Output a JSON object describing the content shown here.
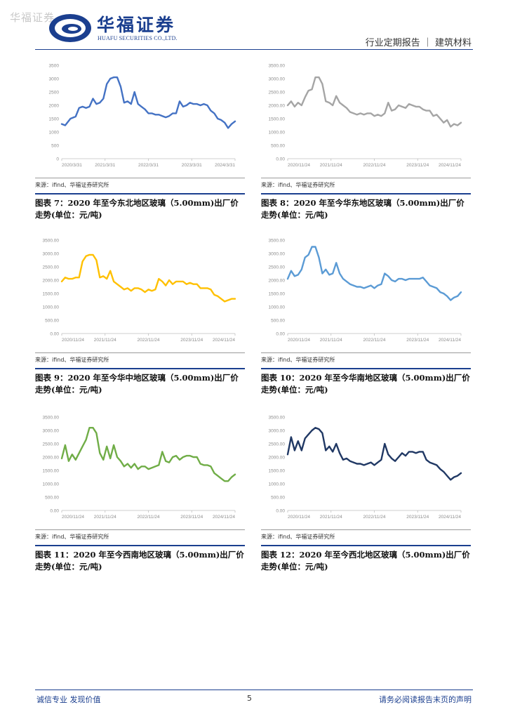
{
  "watermark": "华福证券",
  "header": {
    "logo_cn": "华福证券",
    "logo_en": "HUAFU SECURITIES CO.,LTD.",
    "report_type": "行业定期报告 ｜ 建筑材料"
  },
  "panels": [
    {
      "source": "来源：ifind、华福证券研究所",
      "caption": "图表 7：2020 年至今东北地区玻璃（5.00mm)出厂价走势(单位：元/吨)"
    },
    {
      "source": "来源：ifind、华福证券研究所",
      "caption": "图表 8：2020 年至今华东地区玻璃（5.00mm)出厂价走势(单位：元/吨)"
    },
    {
      "source": "来源：ifind、华福证券研究所",
      "caption": "图表 9：2020 年至今华中地区玻璃（5.00mm)出厂价走势(单位：元/吨)"
    },
    {
      "source": "来源：ifind、华福证券研究所",
      "caption": "图表 10：2020 年至今华南地区玻璃（5.00mm)出厂价走势(单位：元/吨)"
    },
    {
      "source": "来源：ifind、华福证券研究所",
      "caption": "图表 11：2020 年至今西南地区玻璃（5.00mm)出厂价走势(单位：元/吨)"
    },
    {
      "source": "来源：ifind、华福证券研究所",
      "caption": "图表 12：2020 年至今西北地区玻璃（5.00mm)出厂价走势(单位：元/吨)"
    }
  ],
  "footer": {
    "left": "诚信专业  发现价值",
    "page": "5",
    "right": "请务必阅读报告末页的声明"
  },
  "chart_data": [
    {
      "type": "line",
      "color": "#4472c4",
      "y_ticks": [
        "0",
        "500",
        "1000",
        "1500",
        "2000",
        "2500",
        "3000",
        "3500"
      ],
      "x_ticks": [
        "2020/3/31",
        "2021/3/31",
        "2022/3/31",
        "2023/3/31",
        "2024/3/31"
      ],
      "ylim": [
        0,
        3500
      ],
      "x": [
        0.0,
        0.02,
        0.05,
        0.08,
        0.1,
        0.12,
        0.14,
        0.16,
        0.18,
        0.2,
        0.22,
        0.24,
        0.26,
        0.28,
        0.3,
        0.32,
        0.34,
        0.36,
        0.38,
        0.4,
        0.42,
        0.44,
        0.46,
        0.48,
        0.5,
        0.52,
        0.54,
        0.56,
        0.58,
        0.6,
        0.62,
        0.64,
        0.66,
        0.68,
        0.7,
        0.72,
        0.74,
        0.76,
        0.78,
        0.8,
        0.82,
        0.84,
        0.86,
        0.88,
        0.9,
        0.92,
        0.94,
        0.96,
        0.98,
        1.0
      ],
      "values": [
        1300,
        1250,
        1500,
        1580,
        1900,
        1950,
        1900,
        1950,
        2250,
        2050,
        2100,
        2250,
        2800,
        3000,
        3050,
        3050,
        2700,
        2100,
        2150,
        2050,
        2500,
        2050,
        1950,
        1850,
        1700,
        1700,
        1650,
        1650,
        1600,
        1550,
        1600,
        1700,
        1700,
        2150,
        1950,
        2000,
        2100,
        2050,
        2050,
        2000,
        2050,
        2000,
        1800,
        1700,
        1500,
        1450,
        1350,
        1150,
        1300,
        1400
      ]
    },
    {
      "type": "line",
      "color": "#a5a5a5",
      "y_ticks": [
        "0.00",
        "500.00",
        "1000.00",
        "1500.00",
        "2000.00",
        "2500.00",
        "3000.00",
        "3500.00"
      ],
      "x_ticks": [
        "2020/11/24",
        "2021/11/24",
        "2022/11/24",
        "2023/11/24",
        "2024/11/24"
      ],
      "ylim": [
        0,
        3500
      ],
      "x": [
        0.0,
        0.02,
        0.04,
        0.06,
        0.08,
        0.1,
        0.12,
        0.14,
        0.16,
        0.18,
        0.2,
        0.22,
        0.24,
        0.26,
        0.28,
        0.3,
        0.32,
        0.34,
        0.36,
        0.38,
        0.4,
        0.42,
        0.44,
        0.46,
        0.48,
        0.5,
        0.52,
        0.54,
        0.56,
        0.58,
        0.6,
        0.62,
        0.64,
        0.66,
        0.68,
        0.7,
        0.72,
        0.74,
        0.76,
        0.78,
        0.8,
        0.82,
        0.84,
        0.86,
        0.88,
        0.9,
        0.92,
        0.94,
        0.96,
        0.98,
        1.0
      ],
      "values": [
        2000,
        2150,
        1950,
        2100,
        2000,
        2300,
        2550,
        2600,
        3050,
        3050,
        2800,
        2150,
        2100,
        2000,
        2350,
        2100,
        2000,
        1900,
        1750,
        1700,
        1650,
        1700,
        1650,
        1700,
        1700,
        1600,
        1650,
        1600,
        1700,
        2100,
        1800,
        1850,
        2000,
        1950,
        1900,
        2050,
        2000,
        1950,
        1950,
        1850,
        1800,
        1800,
        1600,
        1650,
        1500,
        1350,
        1450,
        1200,
        1300,
        1250,
        1350
      ]
    },
    {
      "type": "line",
      "color": "#ffc000",
      "y_ticks": [
        "0.00",
        "500.00",
        "1000.00",
        "1500.00",
        "2000.00",
        "2500.00",
        "3000.00",
        "3500.00"
      ],
      "x_ticks": [
        "2020/11/24",
        "2021/11/24",
        "2022/11/24",
        "2023/11/24",
        "2024/11/24"
      ],
      "ylim": [
        0,
        3500
      ],
      "x": [
        0.0,
        0.02,
        0.04,
        0.06,
        0.08,
        0.1,
        0.12,
        0.14,
        0.16,
        0.18,
        0.2,
        0.22,
        0.24,
        0.26,
        0.28,
        0.3,
        0.32,
        0.34,
        0.36,
        0.38,
        0.4,
        0.42,
        0.44,
        0.46,
        0.48,
        0.5,
        0.52,
        0.54,
        0.56,
        0.58,
        0.6,
        0.62,
        0.64,
        0.66,
        0.68,
        0.7,
        0.72,
        0.74,
        0.76,
        0.78,
        0.8,
        0.82,
        0.84,
        0.86,
        0.88,
        0.9,
        0.92,
        0.94,
        0.96,
        0.98,
        1.0
      ],
      "values": [
        1950,
        2100,
        2050,
        2050,
        2100,
        2100,
        2700,
        2900,
        2950,
        2950,
        2750,
        2100,
        2150,
        2050,
        2350,
        1950,
        1850,
        1750,
        1650,
        1700,
        1600,
        1700,
        1700,
        1650,
        1550,
        1650,
        1600,
        1650,
        2050,
        1950,
        1800,
        2000,
        1850,
        1950,
        1950,
        1950,
        1850,
        1900,
        1850,
        1850,
        1700,
        1700,
        1700,
        1650,
        1450,
        1400,
        1300,
        1200,
        1250,
        1300,
        1300
      ]
    },
    {
      "type": "line",
      "color": "#5b9bd5",
      "y_ticks": [
        "0.00",
        "500.00",
        "1000.00",
        "1500.00",
        "2000.00",
        "2500.00",
        "3000.00",
        "3500.00"
      ],
      "x_ticks": [
        "2020/11/24",
        "2021/11/24",
        "2022/11/24",
        "2023/11/24",
        "2024/11/24"
      ],
      "ylim": [
        0,
        3500
      ],
      "x": [
        0.0,
        0.02,
        0.04,
        0.06,
        0.08,
        0.1,
        0.12,
        0.14,
        0.16,
        0.18,
        0.2,
        0.22,
        0.24,
        0.26,
        0.28,
        0.3,
        0.32,
        0.34,
        0.36,
        0.38,
        0.4,
        0.42,
        0.44,
        0.46,
        0.48,
        0.5,
        0.52,
        0.54,
        0.56,
        0.58,
        0.6,
        0.62,
        0.64,
        0.66,
        0.68,
        0.7,
        0.72,
        0.74,
        0.76,
        0.78,
        0.8,
        0.82,
        0.84,
        0.86,
        0.88,
        0.9,
        0.92,
        0.94,
        0.96,
        0.98,
        1.0
      ],
      "values": [
        2050,
        2350,
        2150,
        2200,
        2400,
        2850,
        2950,
        3250,
        3250,
        2850,
        2250,
        2400,
        2200,
        2250,
        2650,
        2250,
        2050,
        1950,
        1850,
        1800,
        1750,
        1750,
        1700,
        1750,
        1800,
        1700,
        1800,
        1850,
        2250,
        2150,
        2000,
        1950,
        2050,
        2050,
        2000,
        2050,
        2050,
        2050,
        2050,
        2100,
        1950,
        1800,
        1750,
        1700,
        1550,
        1500,
        1400,
        1250,
        1350,
        1400,
        1550
      ]
    },
    {
      "type": "line",
      "color": "#70ad47",
      "y_ticks": [
        "0.00",
        "500.00",
        "1000.00",
        "1500.00",
        "2000.00",
        "2500.00",
        "3000.00",
        "3500.00"
      ],
      "x_ticks": [
        "2020/11/24",
        "2021/11/24",
        "2022/11/24",
        "2023/11/24",
        "2024/11/24"
      ],
      "ylim": [
        0,
        3500
      ],
      "x": [
        0.0,
        0.02,
        0.04,
        0.06,
        0.08,
        0.1,
        0.12,
        0.14,
        0.16,
        0.18,
        0.2,
        0.22,
        0.24,
        0.26,
        0.28,
        0.3,
        0.32,
        0.34,
        0.36,
        0.38,
        0.4,
        0.42,
        0.44,
        0.46,
        0.48,
        0.5,
        0.52,
        0.54,
        0.56,
        0.58,
        0.6,
        0.62,
        0.64,
        0.66,
        0.68,
        0.7,
        0.72,
        0.74,
        0.76,
        0.78,
        0.8,
        0.82,
        0.84,
        0.86,
        0.88,
        0.9,
        0.92,
        0.94,
        0.96,
        0.98,
        1.0
      ],
      "values": [
        1950,
        2450,
        1850,
        2100,
        1900,
        2150,
        2400,
        2650,
        3100,
        3100,
        2900,
        2150,
        1900,
        2400,
        1950,
        2450,
        2000,
        1850,
        1650,
        1750,
        1600,
        1750,
        1550,
        1650,
        1650,
        1550,
        1600,
        1650,
        1700,
        2200,
        1850,
        1800,
        2000,
        2050,
        1900,
        2000,
        2050,
        2050,
        2000,
        2000,
        1750,
        1700,
        1700,
        1650,
        1400,
        1300,
        1200,
        1100,
        1100,
        1250,
        1350
      ]
    },
    {
      "type": "line",
      "color": "#203864",
      "y_ticks": [
        "0.00",
        "500.00",
        "1000.00",
        "1500.00",
        "2000.00",
        "2500.00",
        "3000.00",
        "3500.00"
      ],
      "x_ticks": [
        "2020/11/24",
        "2021/11/24",
        "2022/11/24",
        "2023/11/24",
        "2024/11/24"
      ],
      "ylim": [
        0,
        3500
      ],
      "x": [
        0.0,
        0.02,
        0.04,
        0.06,
        0.08,
        0.1,
        0.12,
        0.14,
        0.16,
        0.18,
        0.2,
        0.22,
        0.24,
        0.26,
        0.28,
        0.3,
        0.32,
        0.34,
        0.36,
        0.38,
        0.4,
        0.42,
        0.44,
        0.46,
        0.48,
        0.5,
        0.52,
        0.54,
        0.56,
        0.58,
        0.6,
        0.62,
        0.64,
        0.66,
        0.68,
        0.7,
        0.72,
        0.74,
        0.76,
        0.78,
        0.8,
        0.82,
        0.84,
        0.86,
        0.88,
        0.9,
        0.92,
        0.94,
        0.96,
        0.98,
        1.0
      ],
      "values": [
        2100,
        2750,
        2250,
        2600,
        2250,
        2700,
        2850,
        3000,
        3100,
        3050,
        2900,
        2250,
        2400,
        2200,
        2500,
        2150,
        1900,
        1950,
        1850,
        1800,
        1750,
        1750,
        1700,
        1750,
        1800,
        1700,
        1800,
        1900,
        2500,
        2100,
        1950,
        1850,
        2000,
        2150,
        2050,
        2200,
        2200,
        2150,
        2200,
        2200,
        1900,
        1800,
        1750,
        1700,
        1550,
        1450,
        1300,
        1150,
        1250,
        1300,
        1400
      ]
    }
  ]
}
